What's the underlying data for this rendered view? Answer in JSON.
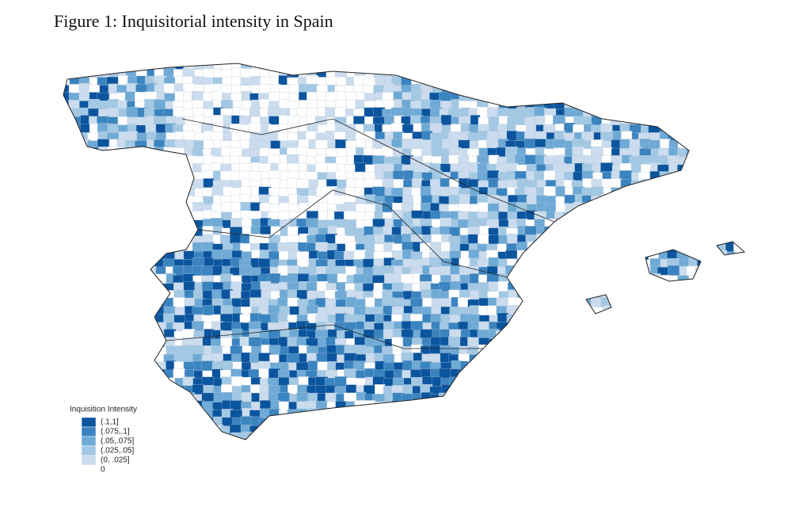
{
  "title": "Figure 1: Inquisitorial intensity in Spain",
  "legend": {
    "title": "Inquisition Intensity",
    "items": [
      {
        "label": "(.1,1]",
        "color": "#0b559f"
      },
      {
        "label": "(.075,.1]",
        "color": "#3a84c0"
      },
      {
        "label": "(.05,.075]",
        "color": "#6eaad5"
      },
      {
        "label": "(.025,.05]",
        "color": "#a2c8e4"
      },
      {
        "label": "(0, .025]",
        "color": "#cadcee"
      },
      {
        "label": "0",
        "color": "#ffffff"
      }
    ]
  }
}
